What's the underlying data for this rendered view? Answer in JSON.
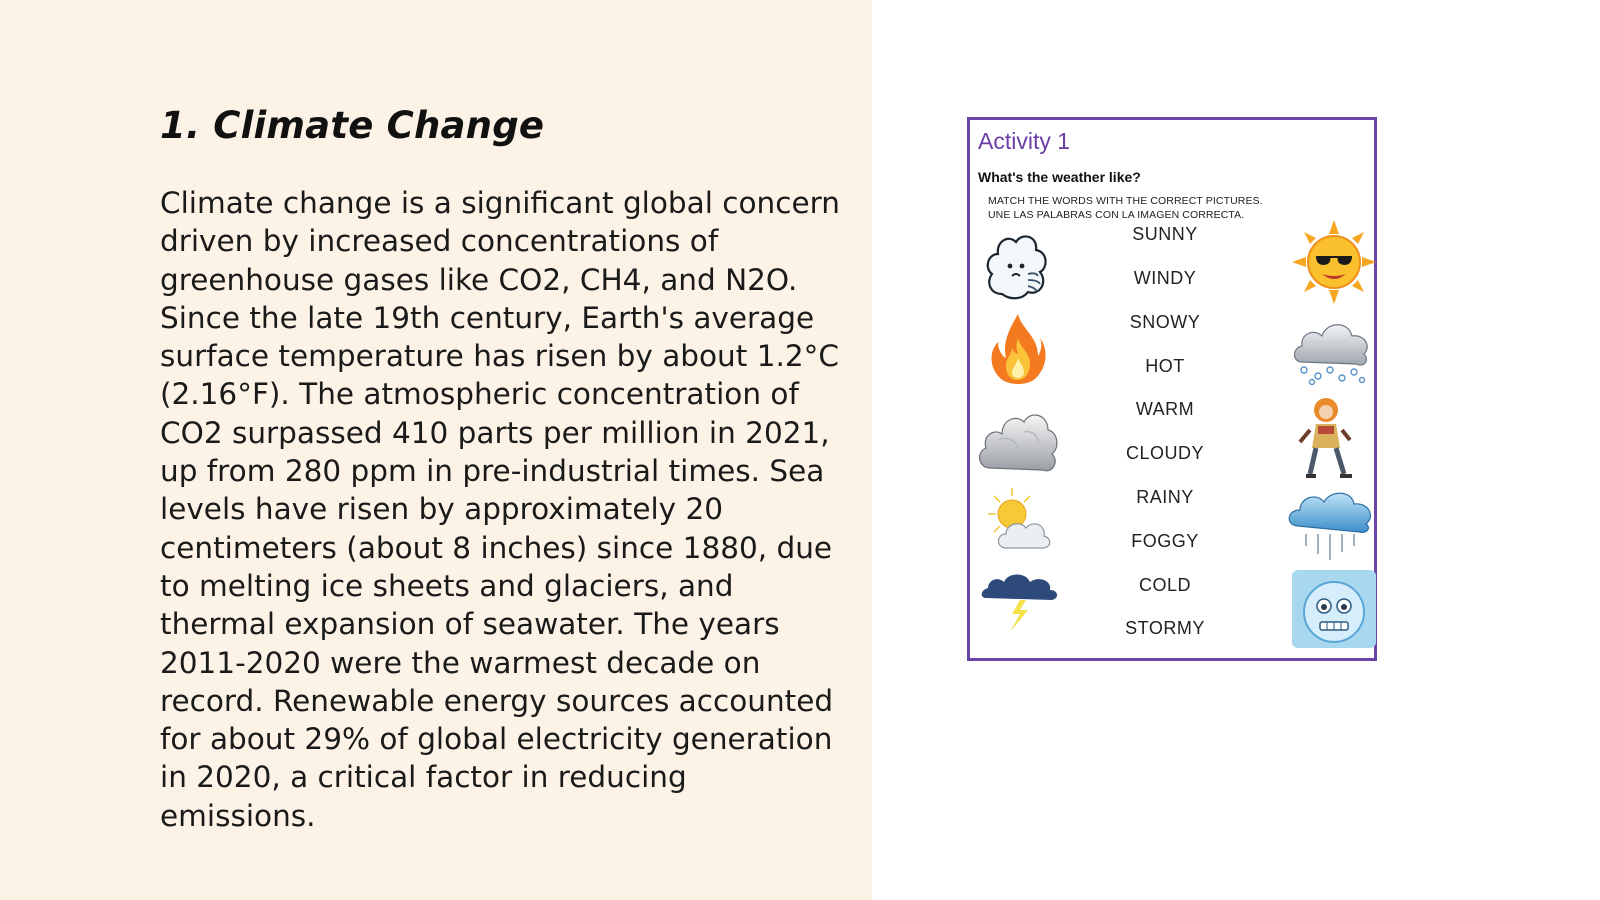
{
  "slide": {
    "title": "1. Climate Change",
    "body": "Climate change is a significant global concern driven by increased concentrations of greenhouse gases like CO2, CH4, and N2O. Since the late 19th century, Earth's average surface temperature has risen by about 1.2°C (2.16°F). The atmospheric concentration of CO2 surpassed 410 parts per million in 2021, up from 280 ppm in pre-industrial times. Sea levels have risen by approximately 20 centimeters (about 8 inches) since 1880, due to melting ice sheets and glaciers, and thermal expansion of seawater. The years 2011-2020 were the warmest decade on record. Renewable energy sources accounted for about 29% of global electricity generation in 2020, a critical factor in reducing emissions."
  },
  "worksheet": {
    "title": "Activity 1",
    "question": "What's the weather like?",
    "instruction_en": "MATCH THE WORDS WITH THE CORRECT PICTURES.",
    "instruction_es": "UNE LAS PALABRAS CON LA IMAGEN CORRECTA.",
    "words": [
      "SUNNY",
      "WINDY",
      "SNOWY",
      "HOT",
      "WARM",
      "CLOUDY",
      "RAINY",
      "FOGGY",
      "COLD",
      "STORMY"
    ],
    "left_pictures": [
      "wind-cloud-icon",
      "fire-icon",
      "cloud-icon",
      "sun-behind-cloud-icon",
      "storm-cloud-icon"
    ],
    "right_pictures": [
      "sun-with-sunglasses-icon",
      "snow-cloud-icon",
      "warm-clothed-child-icon",
      "rain-cloud-icon",
      "frozen-ice-face-icon"
    ],
    "border_color": "#6b46a8",
    "title_color": "#6b3fa5"
  },
  "colors": {
    "left_panel_bg": "#fcf3e6"
  }
}
